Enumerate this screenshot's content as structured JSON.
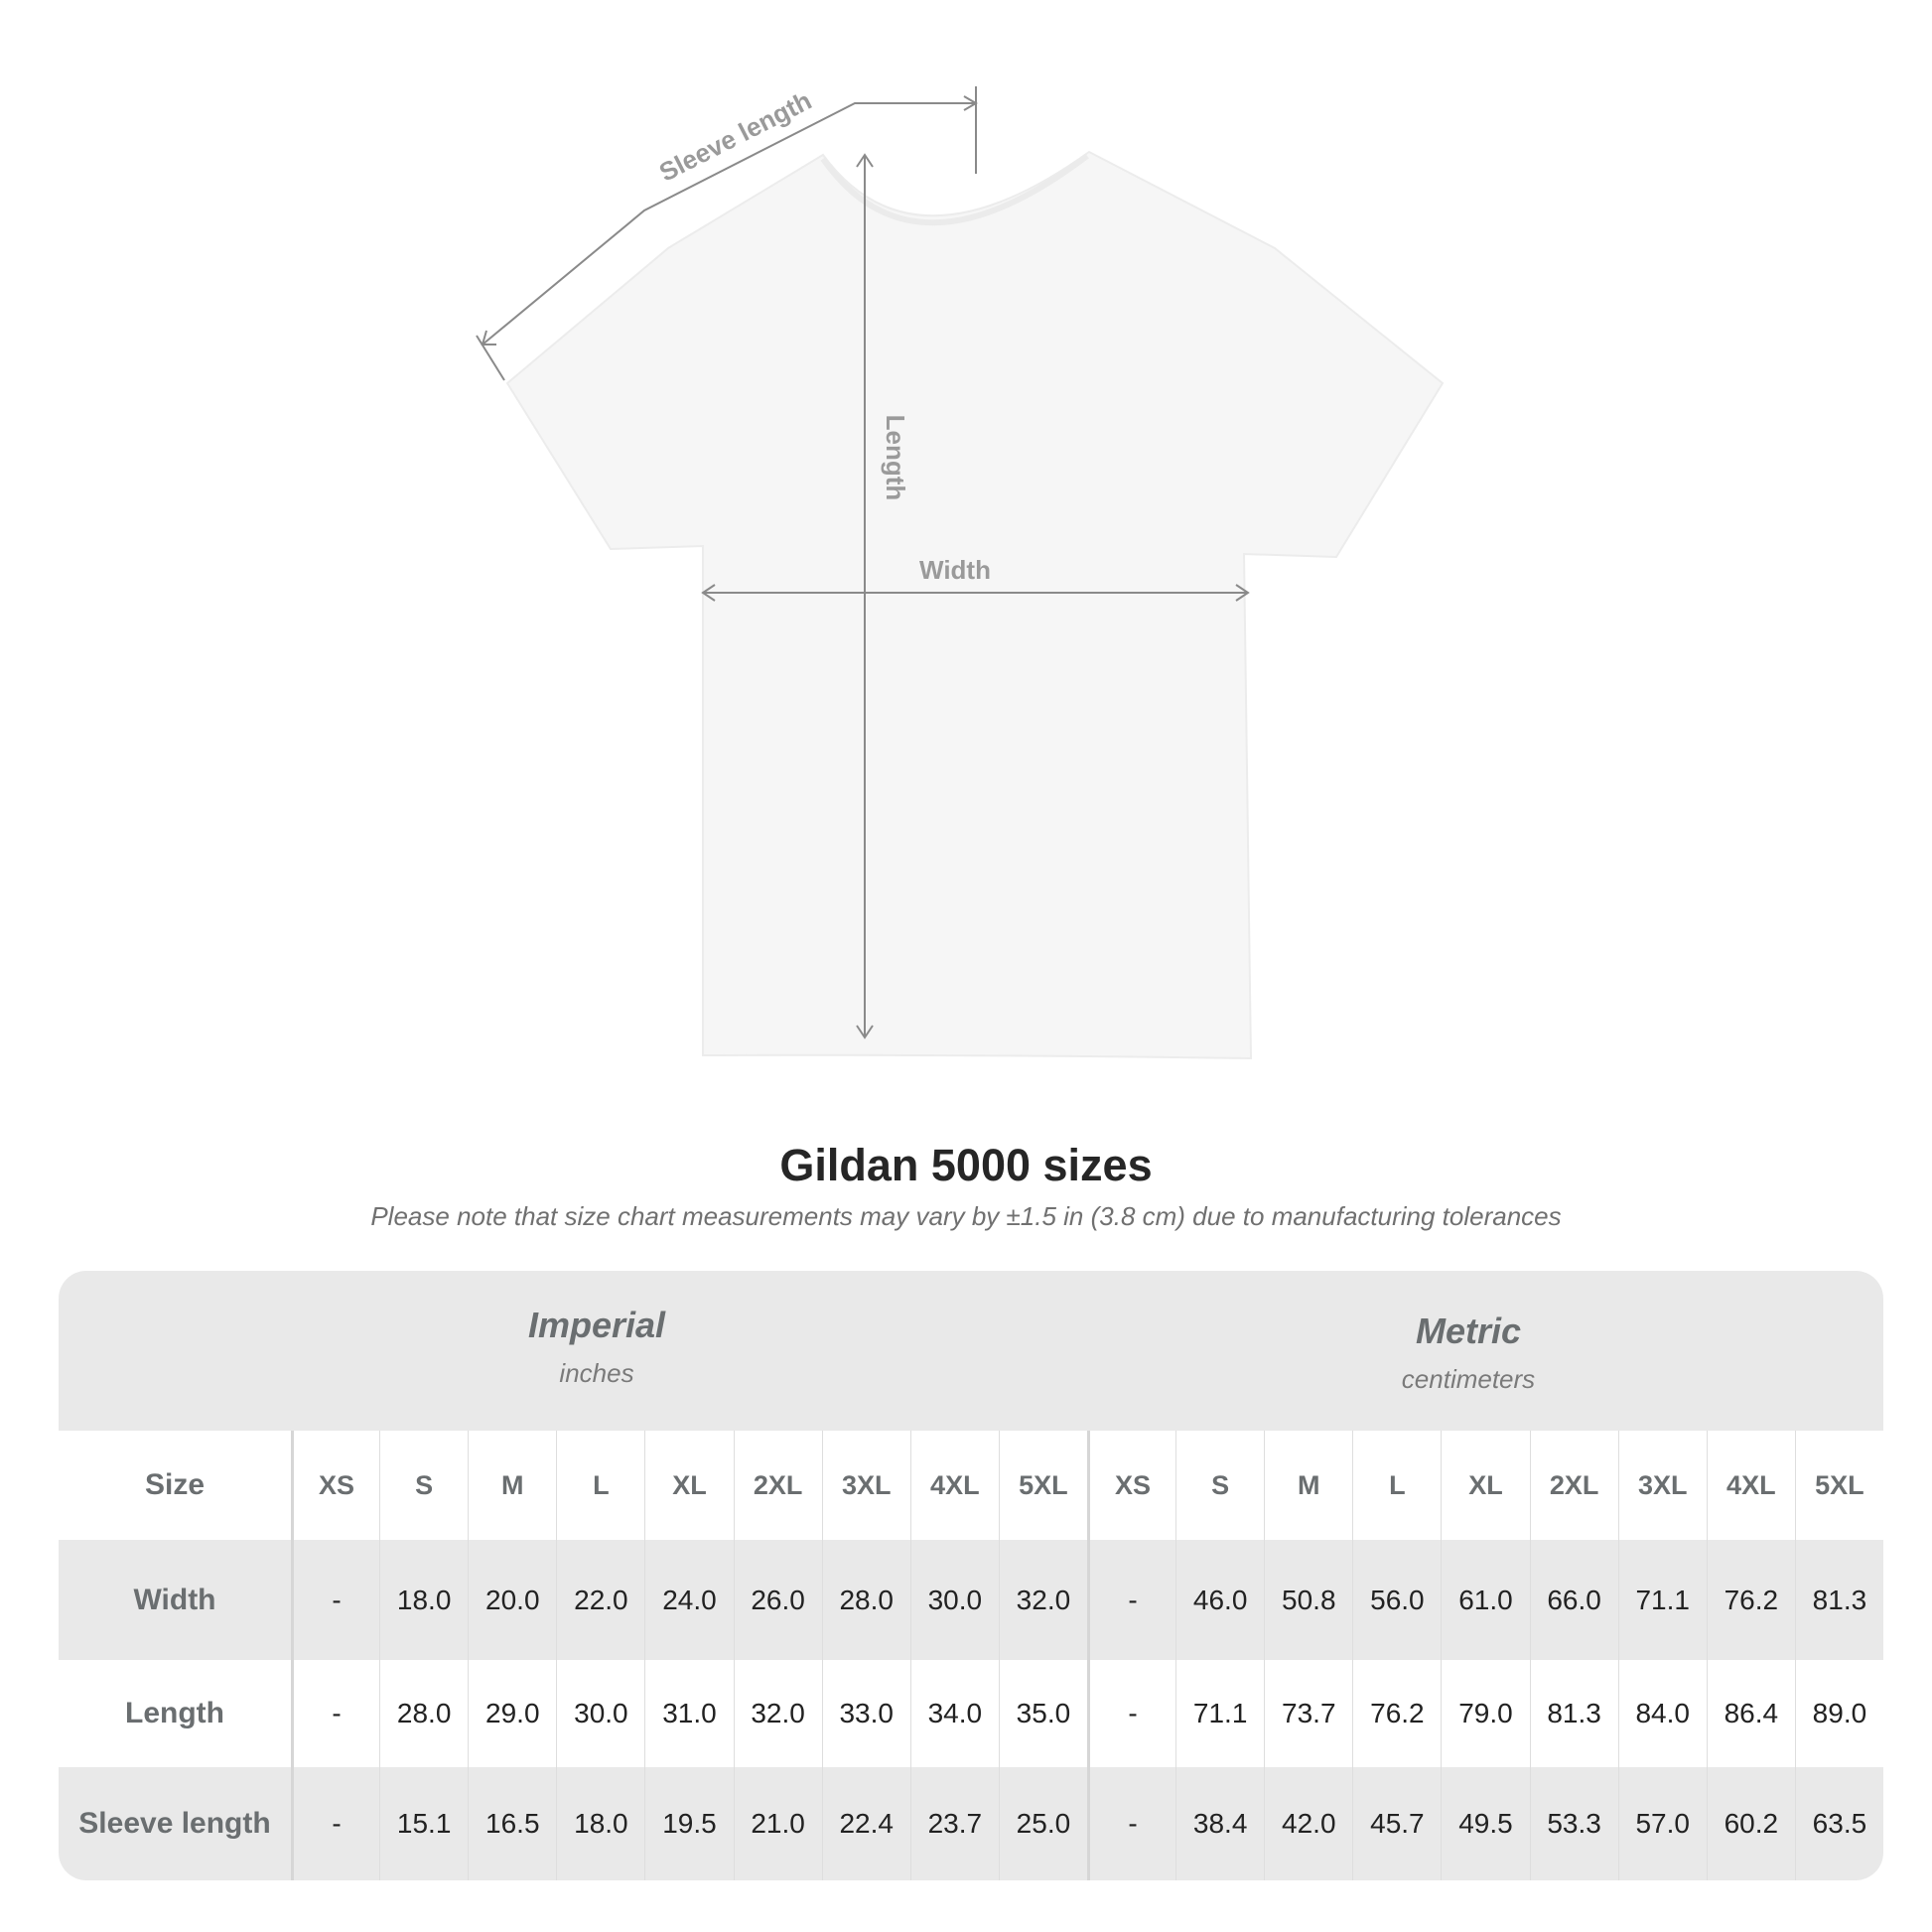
{
  "diagram": {
    "sleeve_label": "Sleeve length",
    "length_label": "Length",
    "width_label": "Width"
  },
  "title": "Gildan 5000 sizes",
  "note": "Please note that size chart measurements may vary by ±1.5 in (3.8 cm) due to manufacturing tolerances",
  "table": {
    "imperial": {
      "name": "Imperial",
      "unit": "inches"
    },
    "metric": {
      "name": "Metric",
      "unit": "centimeters"
    },
    "size_label": "Size",
    "sizes": [
      "XS",
      "S",
      "M",
      "L",
      "XL",
      "2XL",
      "3XL",
      "4XL",
      "5XL"
    ],
    "rows": [
      {
        "label": "Width",
        "imperial": [
          "-",
          "18.0",
          "20.0",
          "22.0",
          "24.0",
          "26.0",
          "28.0",
          "30.0",
          "32.0"
        ],
        "metric": [
          "-",
          "46.0",
          "50.8",
          "56.0",
          "61.0",
          "66.0",
          "71.1",
          "76.2",
          "81.3"
        ]
      },
      {
        "label": "Length",
        "imperial": [
          "-",
          "28.0",
          "29.0",
          "30.0",
          "31.0",
          "32.0",
          "33.0",
          "34.0",
          "35.0"
        ],
        "metric": [
          "-",
          "71.1",
          "73.7",
          "76.2",
          "79.0",
          "81.3",
          "84.0",
          "86.4",
          "89.0"
        ]
      },
      {
        "label": "Sleeve length",
        "imperial": [
          "-",
          "15.1",
          "16.5",
          "18.0",
          "19.5",
          "21.0",
          "22.4",
          "23.7",
          "25.0"
        ],
        "metric": [
          "-",
          "38.4",
          "42.0",
          "45.7",
          "49.5",
          "53.3",
          "57.0",
          "60.2",
          "63.5"
        ]
      }
    ]
  },
  "colors": {
    "header_band": "#e9e9e9",
    "label_text": "#6a6e70",
    "shirt": "#f6f6f6",
    "measure_line": "#8a8a8a"
  }
}
